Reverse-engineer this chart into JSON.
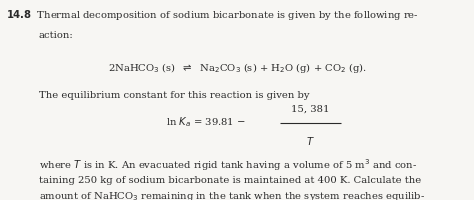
{
  "background_color": "#f7f6f3",
  "text_color": "#2a2a2a",
  "fig_width": 4.74,
  "fig_height": 2.01,
  "dpi": 100,
  "fontsize": 7.2,
  "line1_bold": "14.8",
  "line1_rest": "  Thermal decomposition of sodium bicarbonate is given by the following re-",
  "line2": "action:",
  "reaction": "2NaHCO$_3$ (s)  $\\rightleftharpoons$  Na$_2$CO$_3$ (s) + H$_2$O (g) + CO$_2$ (g).",
  "equil_intro": "The equilibrium constant for this reaction is given by",
  "eq_lhs": "ln $K_a$ = 39.81 $-$",
  "numerator": "15, 381",
  "denominator": "$T$",
  "body": "where $T$ is in K. An evacuated rigid tank having a volume of 5 m$^3$ and con-\ntaining 250 kg of sodium bicarbonate is maintained at 400 K. Calculate the\namount of NaHCO$_3$ remaining in the tank when the system reaches equilib-\nrium."
}
